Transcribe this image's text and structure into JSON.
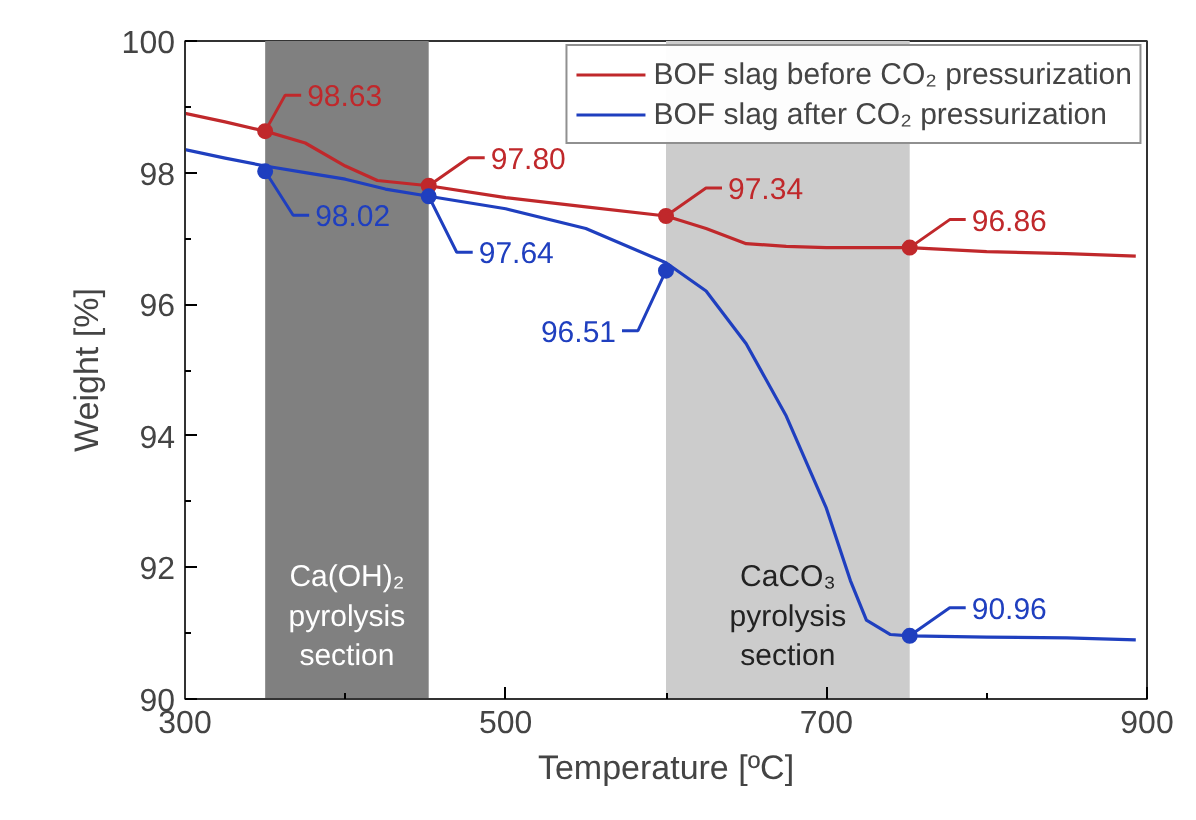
{
  "chart_data": {
    "type": "line",
    "xlabel": "Temperature [ºC]",
    "ylabel": "Weight [%]",
    "xlim": [
      300,
      900
    ],
    "ylim": [
      90,
      100
    ],
    "xticks": [
      300,
      500,
      700,
      900
    ],
    "yticks": [
      90,
      92,
      94,
      96,
      98,
      100
    ],
    "grid": false,
    "legend": "top right",
    "line_style": "solid",
    "bands": [
      {
        "axis": "x",
        "from": 350,
        "to": 452,
        "label": "Ca(OH)₂\npyrolysis\nsection",
        "color": "#808080"
      },
      {
        "axis": "x",
        "from": 600,
        "to": 752,
        "label": "CaCO₃\npyrolysis\nsection",
        "color": "#cccccc"
      }
    ],
    "series": [
      {
        "name": "BOF slag before CO₂ pressurization",
        "color": "#c0282b",
        "x": [
          300,
          325,
          350,
          375,
          400,
          420,
          452,
          500,
          550,
          600,
          625,
          650,
          675,
          700,
          752,
          800,
          850,
          893
        ],
        "values": [
          98.9,
          98.77,
          98.63,
          98.45,
          98.1,
          97.88,
          97.8,
          97.62,
          97.48,
          97.34,
          97.15,
          96.92,
          96.88,
          96.86,
          96.86,
          96.8,
          96.77,
          96.73
        ]
      },
      {
        "name": "BOF slag after CO₂ pressurization",
        "color": "#1f3fbf",
        "x": [
          300,
          325,
          350,
          375,
          400,
          425,
          452,
          500,
          550,
          600,
          625,
          650,
          675,
          700,
          715,
          725,
          740,
          752,
          800,
          850,
          893
        ],
        "values": [
          98.35,
          98.22,
          98.1,
          98.0,
          97.9,
          97.75,
          97.64,
          97.45,
          97.15,
          96.63,
          96.2,
          95.4,
          94.3,
          92.9,
          91.8,
          91.2,
          90.98,
          90.96,
          90.94,
          90.93,
          90.9
        ]
      },
      {
        "type": "scatter",
        "marker": "circle",
        "color": "#c0282b",
        "x": [
          350,
          452,
          600,
          752
        ],
        "values": [
          98.63,
          97.8,
          97.34,
          96.86
        ],
        "value_labels": [
          "98.63",
          "97.80",
          "97.34",
          "96.86"
        ]
      },
      {
        "type": "scatter",
        "marker": "circle",
        "color": "#1f3fbf",
        "x": [
          350,
          452,
          600,
          752
        ],
        "values": [
          98.02,
          97.64,
          96.51,
          90.96
        ],
        "value_labels": [
          "98.02",
          "97.64",
          "96.51",
          "90.96"
        ]
      }
    ]
  }
}
